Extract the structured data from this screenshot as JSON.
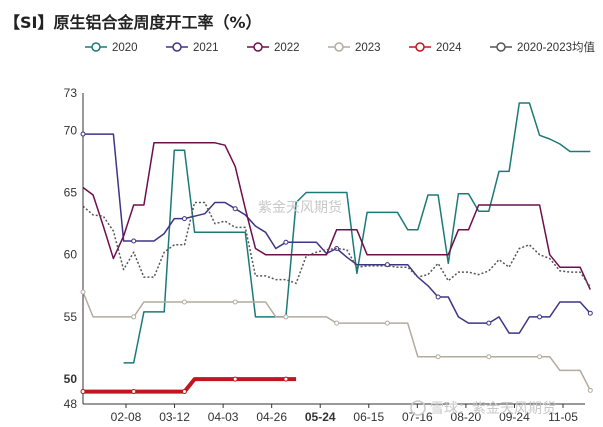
{
  "chart_data": {
    "type": "line",
    "title": "【SI】原生铝合金周度开工率（%）",
    "xlabel": "",
    "ylabel": "",
    "ylim": [
      48,
      73
    ],
    "yticks": [
      48,
      50,
      55,
      60,
      65,
      70,
      73
    ],
    "highlight_ytick": 50,
    "xticks": [
      "02-08",
      "03-12",
      "04-03",
      "04-26",
      "05-24",
      "06-15",
      "07-16",
      "08-20",
      "09-24",
      "11-05"
    ],
    "highlight_xtick": "05-24",
    "x_count": 49,
    "legend_position": "top",
    "series": [
      {
        "name": "2020",
        "color": "#1b7a78",
        "dash": "",
        "marker": "",
        "points": [
          [
            5,
            51.3
          ],
          [
            6,
            51.3
          ],
          [
            7,
            55.4
          ],
          [
            8,
            55.4
          ],
          [
            9,
            55.4
          ],
          [
            10,
            68.4
          ],
          [
            11,
            68.4
          ],
          [
            12,
            61.8
          ],
          [
            13,
            61.8
          ],
          [
            14,
            61.8
          ],
          [
            15,
            61.8
          ],
          [
            16,
            61.8
          ],
          [
            17,
            61.8
          ],
          [
            18,
            55
          ],
          [
            19,
            55
          ],
          [
            20,
            55
          ],
          [
            21,
            55
          ],
          [
            22,
            64.2
          ],
          [
            23,
            65
          ],
          [
            24,
            65
          ],
          [
            25,
            65
          ],
          [
            26,
            65
          ],
          [
            27,
            65
          ],
          [
            28,
            58.5
          ],
          [
            29,
            63.4
          ],
          [
            30,
            63.4
          ],
          [
            31,
            63.4
          ],
          [
            32,
            63.4
          ],
          [
            33,
            62
          ],
          [
            34,
            62
          ],
          [
            35,
            64.8
          ],
          [
            36,
            64.8
          ],
          [
            37,
            59.3
          ],
          [
            38,
            64.9
          ],
          [
            39,
            64.9
          ],
          [
            40,
            63.5
          ],
          [
            41,
            63.5
          ],
          [
            42,
            66.7
          ],
          [
            43,
            66.7
          ],
          [
            44,
            72.2
          ],
          [
            45,
            72.2
          ],
          [
            46,
            69.6
          ],
          [
            47,
            69.3
          ],
          [
            48,
            68.9
          ],
          [
            49,
            68.3
          ],
          [
            50,
            68.3
          ],
          [
            51,
            68.3
          ]
        ]
      },
      {
        "name": "2021",
        "color": "#3d3585",
        "dash": "",
        "marker": "o",
        "points": [
          [
            1,
            69.7
          ],
          [
            2,
            69.7
          ],
          [
            3,
            69.7
          ],
          [
            4,
            69.7
          ],
          [
            5,
            61.1
          ],
          [
            6,
            61.1
          ],
          [
            7,
            61.1
          ],
          [
            8,
            61.1
          ],
          [
            9,
            61.7
          ],
          [
            10,
            62.9
          ],
          [
            11,
            62.9
          ],
          [
            12,
            63.1
          ],
          [
            13,
            63.3
          ],
          [
            14,
            64.2
          ],
          [
            15,
            64.2
          ],
          [
            16,
            63.7
          ],
          [
            17,
            63.2
          ],
          [
            18,
            62.3
          ],
          [
            19,
            61.8
          ],
          [
            20,
            60.5
          ],
          [
            21,
            61
          ],
          [
            22,
            61
          ],
          [
            23,
            61
          ],
          [
            24,
            61
          ],
          [
            25,
            60.1
          ],
          [
            26,
            60.5
          ],
          [
            27,
            59.8
          ],
          [
            28,
            59.2
          ],
          [
            29,
            59.2
          ],
          [
            30,
            59.2
          ],
          [
            31,
            59.2
          ],
          [
            32,
            59.2
          ],
          [
            33,
            59.2
          ],
          [
            34,
            58.2
          ],
          [
            35,
            57.5
          ],
          [
            36,
            56.6
          ],
          [
            37,
            56.6
          ],
          [
            38,
            55
          ],
          [
            39,
            54.5
          ],
          [
            40,
            54.5
          ],
          [
            41,
            54.5
          ],
          [
            42,
            55
          ],
          [
            43,
            53.7
          ],
          [
            44,
            53.7
          ],
          [
            45,
            55
          ],
          [
            46,
            55
          ],
          [
            47,
            55
          ],
          [
            48,
            56.2
          ],
          [
            49,
            56.2
          ],
          [
            50,
            56.2
          ],
          [
            51,
            55.3
          ]
        ]
      },
      {
        "name": "2022",
        "color": "#6e0f4d",
        "dash": "",
        "marker": "",
        "points": [
          [
            1,
            65.4
          ],
          [
            2,
            64.8
          ],
          [
            3,
            62.3
          ],
          [
            4,
            59.7
          ],
          [
            5,
            61.5
          ],
          [
            6,
            64
          ],
          [
            7,
            64
          ],
          [
            8,
            69
          ],
          [
            9,
            69
          ],
          [
            10,
            69
          ],
          [
            11,
            69
          ],
          [
            12,
            69
          ],
          [
            13,
            69
          ],
          [
            14,
            69
          ],
          [
            15,
            68.8
          ],
          [
            16,
            67.1
          ],
          [
            17,
            63.7
          ],
          [
            18,
            60.5
          ],
          [
            19,
            60
          ],
          [
            20,
            60
          ],
          [
            21,
            60
          ],
          [
            22,
            60
          ],
          [
            23,
            60
          ],
          [
            24,
            60
          ],
          [
            25,
            60
          ],
          [
            26,
            62
          ],
          [
            27,
            62
          ],
          [
            28,
            62
          ],
          [
            29,
            60
          ],
          [
            30,
            60
          ],
          [
            31,
            60
          ],
          [
            32,
            60
          ],
          [
            33,
            60
          ],
          [
            34,
            60
          ],
          [
            35,
            60
          ],
          [
            36,
            60
          ],
          [
            37,
            60
          ],
          [
            38,
            62
          ],
          [
            39,
            62
          ],
          [
            40,
            64
          ],
          [
            41,
            64
          ],
          [
            42,
            64
          ],
          [
            43,
            64
          ],
          [
            44,
            64
          ],
          [
            45,
            64
          ],
          [
            46,
            64
          ],
          [
            47,
            60
          ],
          [
            48,
            59
          ],
          [
            49,
            59
          ],
          [
            50,
            59
          ],
          [
            51,
            57.2
          ]
        ]
      },
      {
        "name": "2023",
        "color": "#b2ab9e",
        "dash": "",
        "marker": "o",
        "points": [
          [
            1,
            57
          ],
          [
            2,
            55
          ],
          [
            3,
            55
          ],
          [
            4,
            55
          ],
          [
            5,
            55
          ],
          [
            6,
            55
          ],
          [
            7,
            56.2
          ],
          [
            8,
            56.2
          ],
          [
            9,
            56.2
          ],
          [
            10,
            56.2
          ],
          [
            11,
            56.2
          ],
          [
            12,
            56.2
          ],
          [
            13,
            56.2
          ],
          [
            14,
            56.2
          ],
          [
            15,
            56.2
          ],
          [
            16,
            56.2
          ],
          [
            17,
            56.2
          ],
          [
            18,
            56.2
          ],
          [
            19,
            56.2
          ],
          [
            20,
            55
          ],
          [
            21,
            55
          ],
          [
            22,
            55
          ],
          [
            23,
            55
          ],
          [
            24,
            55
          ],
          [
            25,
            55
          ],
          [
            26,
            54.5
          ],
          [
            27,
            54.5
          ],
          [
            28,
            54.5
          ],
          [
            29,
            54.5
          ],
          [
            30,
            54.5
          ],
          [
            31,
            54.5
          ],
          [
            32,
            54.5
          ],
          [
            33,
            54.5
          ],
          [
            34,
            51.8
          ],
          [
            35,
            51.8
          ],
          [
            36,
            51.8
          ],
          [
            37,
            51.8
          ],
          [
            38,
            51.8
          ],
          [
            39,
            51.8
          ],
          [
            40,
            51.8
          ],
          [
            41,
            51.8
          ],
          [
            42,
            51.8
          ],
          [
            43,
            51.8
          ],
          [
            44,
            51.8
          ],
          [
            45,
            51.8
          ],
          [
            46,
            51.8
          ],
          [
            47,
            51.8
          ],
          [
            48,
            50.7
          ],
          [
            49,
            50.7
          ],
          [
            50,
            50.7
          ],
          [
            51,
            49.1
          ]
        ]
      },
      {
        "name": "2024",
        "color": "#c0161f",
        "dash": "",
        "marker": "o",
        "width": 4,
        "points": [
          [
            1,
            49
          ],
          [
            2,
            49
          ],
          [
            3,
            49
          ],
          [
            4,
            49
          ],
          [
            5,
            49
          ],
          [
            6,
            49
          ],
          [
            7,
            49
          ],
          [
            8,
            49
          ],
          [
            9,
            49
          ],
          [
            10,
            49
          ],
          [
            11,
            49
          ],
          [
            12,
            50
          ],
          [
            13,
            50
          ],
          [
            14,
            50
          ],
          [
            15,
            50
          ],
          [
            16,
            50
          ],
          [
            17,
            50
          ],
          [
            18,
            50
          ],
          [
            19,
            50
          ],
          [
            20,
            50
          ],
          [
            21,
            50
          ],
          [
            22,
            50
          ]
        ]
      },
      {
        "name": "2020-2023均值",
        "color": "#555555",
        "dash": "2,2",
        "marker": "",
        "points": [
          [
            1,
            63.9
          ],
          [
            2,
            63.2
          ],
          [
            3,
            63.1
          ],
          [
            4,
            61.9
          ],
          [
            5,
            58.8
          ],
          [
            6,
            60.2
          ],
          [
            7,
            58.2
          ],
          [
            8,
            58.2
          ],
          [
            9,
            60.2
          ],
          [
            10,
            60.8
          ],
          [
            11,
            60.8
          ],
          [
            12,
            64.2
          ],
          [
            13,
            64.2
          ],
          [
            14,
            62.5
          ],
          [
            15,
            62.7
          ],
          [
            16,
            62.2
          ],
          [
            17,
            62.2
          ],
          [
            18,
            58.3
          ],
          [
            19,
            58.3
          ],
          [
            20,
            58
          ],
          [
            21,
            58
          ],
          [
            22,
            57.7
          ],
          [
            23,
            59.9
          ],
          [
            24,
            60.2
          ],
          [
            25,
            60.4
          ],
          [
            26,
            60.5
          ],
          [
            27,
            60.4
          ],
          [
            28,
            59
          ],
          [
            29,
            59.1
          ],
          [
            30,
            59.1
          ],
          [
            31,
            59.1
          ],
          [
            32,
            59
          ],
          [
            33,
            59
          ],
          [
            34,
            58.2
          ],
          [
            35,
            58.4
          ],
          [
            36,
            59.3
          ],
          [
            37,
            57.9
          ],
          [
            38,
            58.6
          ],
          [
            39,
            58.6
          ],
          [
            40,
            58.4
          ],
          [
            41,
            58.7
          ],
          [
            42,
            59.6
          ],
          [
            43,
            59
          ],
          [
            44,
            60.5
          ],
          [
            45,
            60.8
          ],
          [
            46,
            60
          ],
          [
            47,
            59.7
          ],
          [
            48,
            58.7
          ],
          [
            49,
            58.6
          ],
          [
            50,
            58.6
          ],
          [
            51,
            57.4
          ]
        ]
      }
    ]
  },
  "watermarks": [
    "紫金天风期货",
    "雪球：紫金天风期货"
  ]
}
